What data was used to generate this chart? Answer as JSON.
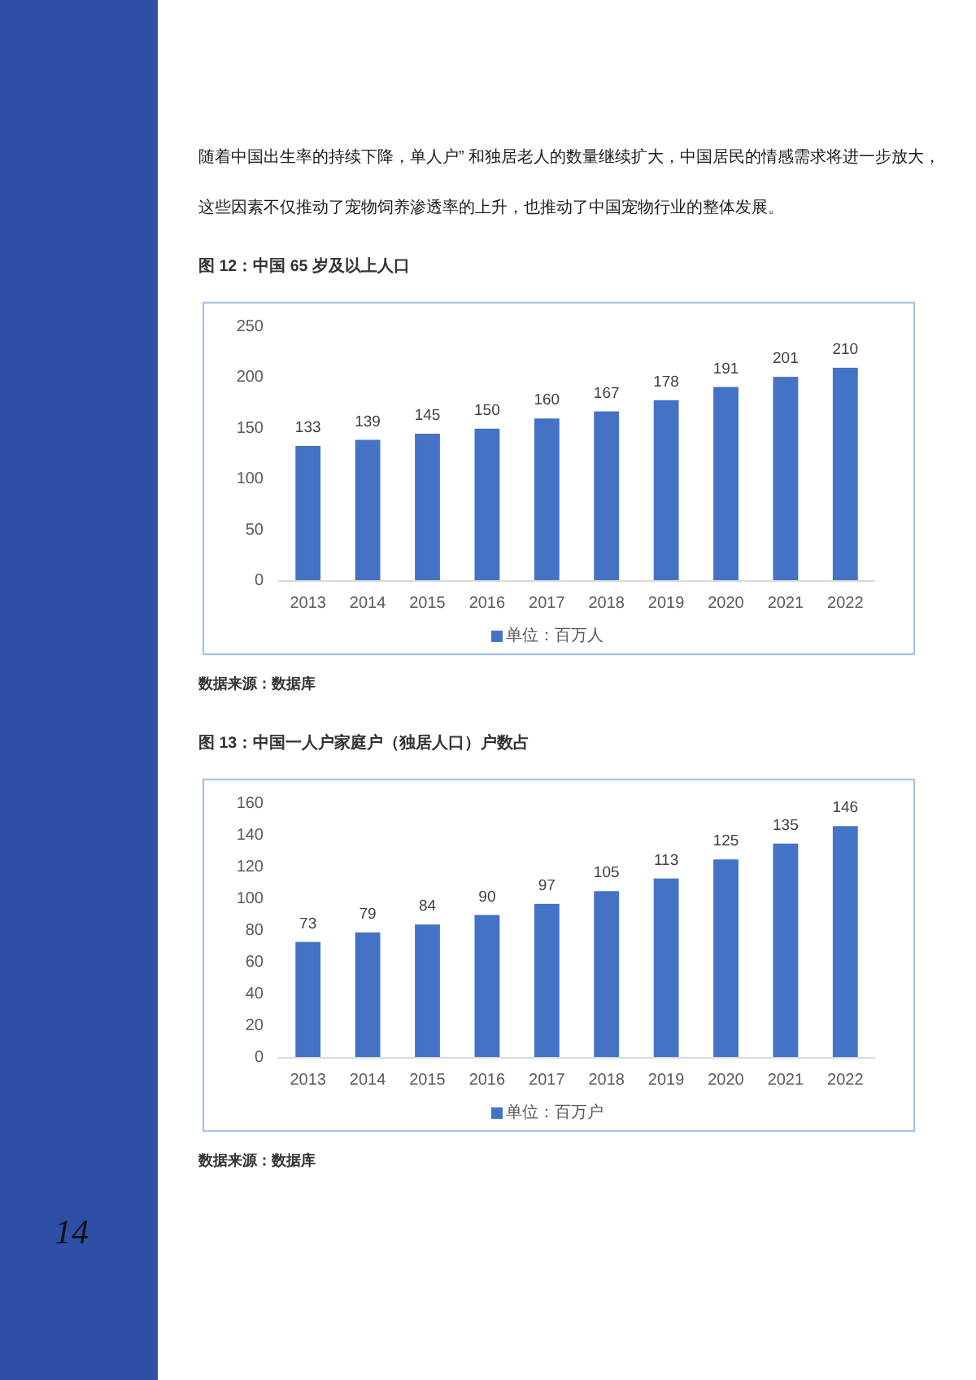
{
  "chart_data": [
    {
      "type": "bar",
      "title": "图 12：中国 65 岁及以上人口",
      "categories": [
        "2013",
        "2014",
        "2015",
        "2016",
        "2017",
        "2018",
        "2019",
        "2020",
        "2021",
        "2022"
      ],
      "series": [
        {
          "name": "单位：百万人",
          "color": "#4472c4",
          "values": [
            133,
            139,
            145,
            150,
            160,
            167,
            178,
            191,
            201,
            210
          ]
        }
      ],
      "ylim": [
        0,
        250
      ],
      "yticks": [
        0,
        50,
        100,
        150,
        200,
        250
      ],
      "data_labels": true,
      "legend": "bottom",
      "annotations": [
        "数据来源：数据库",
        "随着中国出生率的持续下降，单人户” 和独居老人的数量继续扩大，中国居民的情感需求将进一步放大，这些因素不仅推动了宠物饲养渗透率的上升，也推动了中国宠物行业的整体发展。"
      ]
    },
    {
      "type": "bar",
      "title": "图 13：中国一人户家庭户（独居人口）户数占",
      "categories": [
        "2013",
        "2014",
        "2015",
        "2016",
        "2017",
        "2018",
        "2019",
        "2020",
        "2021",
        "2022"
      ],
      "series": [
        {
          "name": "单位：百万户",
          "color": "#4472c4",
          "values": [
            73,
            79,
            84,
            90,
            97,
            105,
            113,
            125,
            135,
            146
          ]
        }
      ],
      "ylim": [
        0,
        160
      ],
      "yticks": [
        0,
        20,
        40,
        60,
        80,
        100,
        120,
        140,
        160
      ],
      "data_labels": true,
      "legend": "bottom",
      "annotations": [
        "数据来源：数据库",
        "14"
      ]
    }
  ]
}
